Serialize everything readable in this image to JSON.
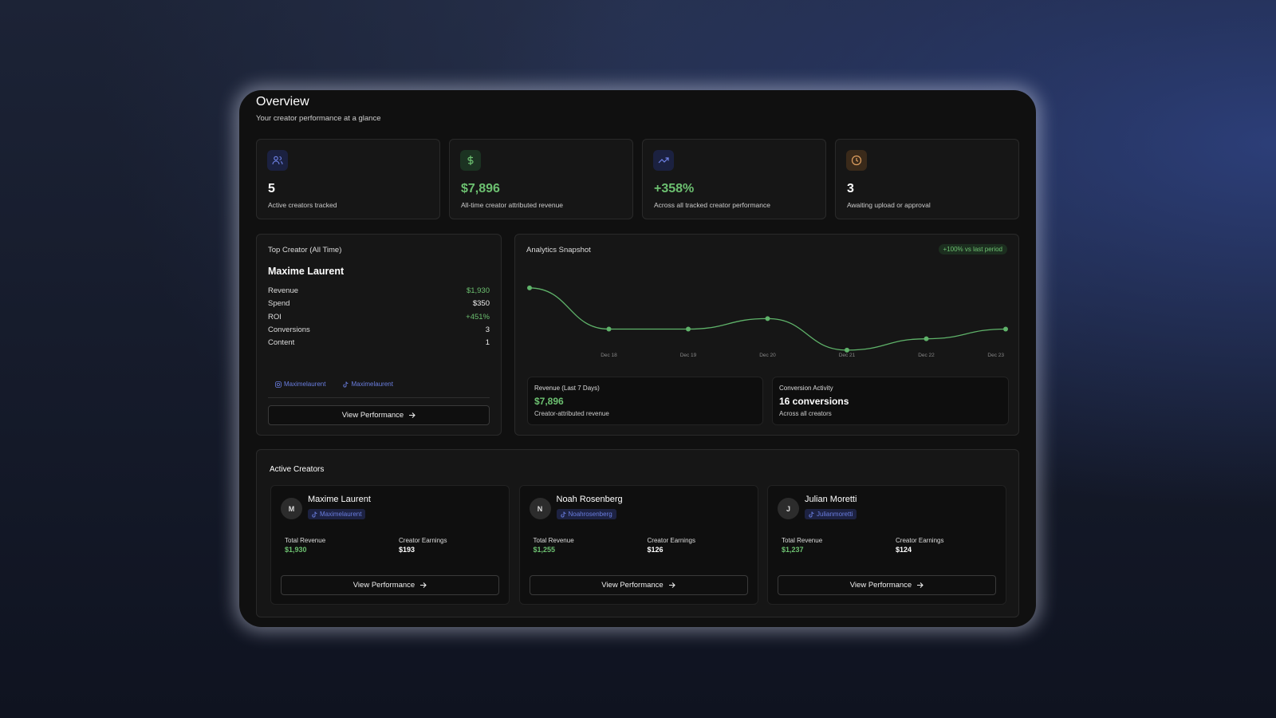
{
  "header": {
    "title": "Overview",
    "subtitle": "Your creator performance at a glance"
  },
  "stats": [
    {
      "value": "5",
      "label": "Active creators tracked"
    },
    {
      "value": "$7,896",
      "label": "All-time creator attributed revenue"
    },
    {
      "value": "+358%",
      "label": "Across all tracked creator performance"
    },
    {
      "value": "3",
      "label": "Awaiting upload or approval"
    }
  ],
  "top_creator": {
    "heading": "Top Creator (All Time)",
    "name": "Maxime Laurent",
    "metrics": [
      {
        "label": "Revenue",
        "value": "$1,930"
      },
      {
        "label": "Spend",
        "value": "$350"
      },
      {
        "label": "ROI",
        "value": "+451%"
      },
      {
        "label": "Conversions",
        "value": "3"
      },
      {
        "label": "Content",
        "value": "1"
      }
    ],
    "handles": [
      "Maximelaurent",
      "Maximelaurent"
    ],
    "button": "View Performance"
  },
  "analytics": {
    "heading": "Analytics Snapshot",
    "badge": "+100% vs last period",
    "boxes": [
      {
        "title": "Revenue (Last 7 Days)",
        "value": "$7,896",
        "caption": "Creator-attributed revenue"
      },
      {
        "title": "Conversion Activity",
        "value": "16 conversions",
        "caption": "Across all creators"
      }
    ]
  },
  "chart_data": {
    "type": "line",
    "categories": [
      null,
      "Dec 18",
      "Dec 19",
      "Dec 20",
      "Dec 21",
      "Dec 22",
      "Dec 23"
    ],
    "values": [
      2376,
      1030,
      1030,
      1373,
      343,
      713,
      1030
    ],
    "color": "#5fb36a",
    "ylim": [
      0,
      2400
    ]
  },
  "active_creators": {
    "heading": "Active Creators",
    "revenue_label": "Total Revenue",
    "earnings_label": "Creator Earnings",
    "button": "View Performance",
    "creators": [
      {
        "initial": "M",
        "name": "Maxime Laurent",
        "handle": "Maximelaurent",
        "revenue": "$1,930",
        "earnings": "$193"
      },
      {
        "initial": "N",
        "name": "Noah Rosenberg",
        "handle": "Noahrosenberg",
        "revenue": "$1,255",
        "earnings": "$126"
      },
      {
        "initial": "J",
        "name": "Julian Moretti",
        "handle": "Julianmoretti",
        "revenue": "$1,237",
        "earnings": "$124"
      }
    ]
  }
}
